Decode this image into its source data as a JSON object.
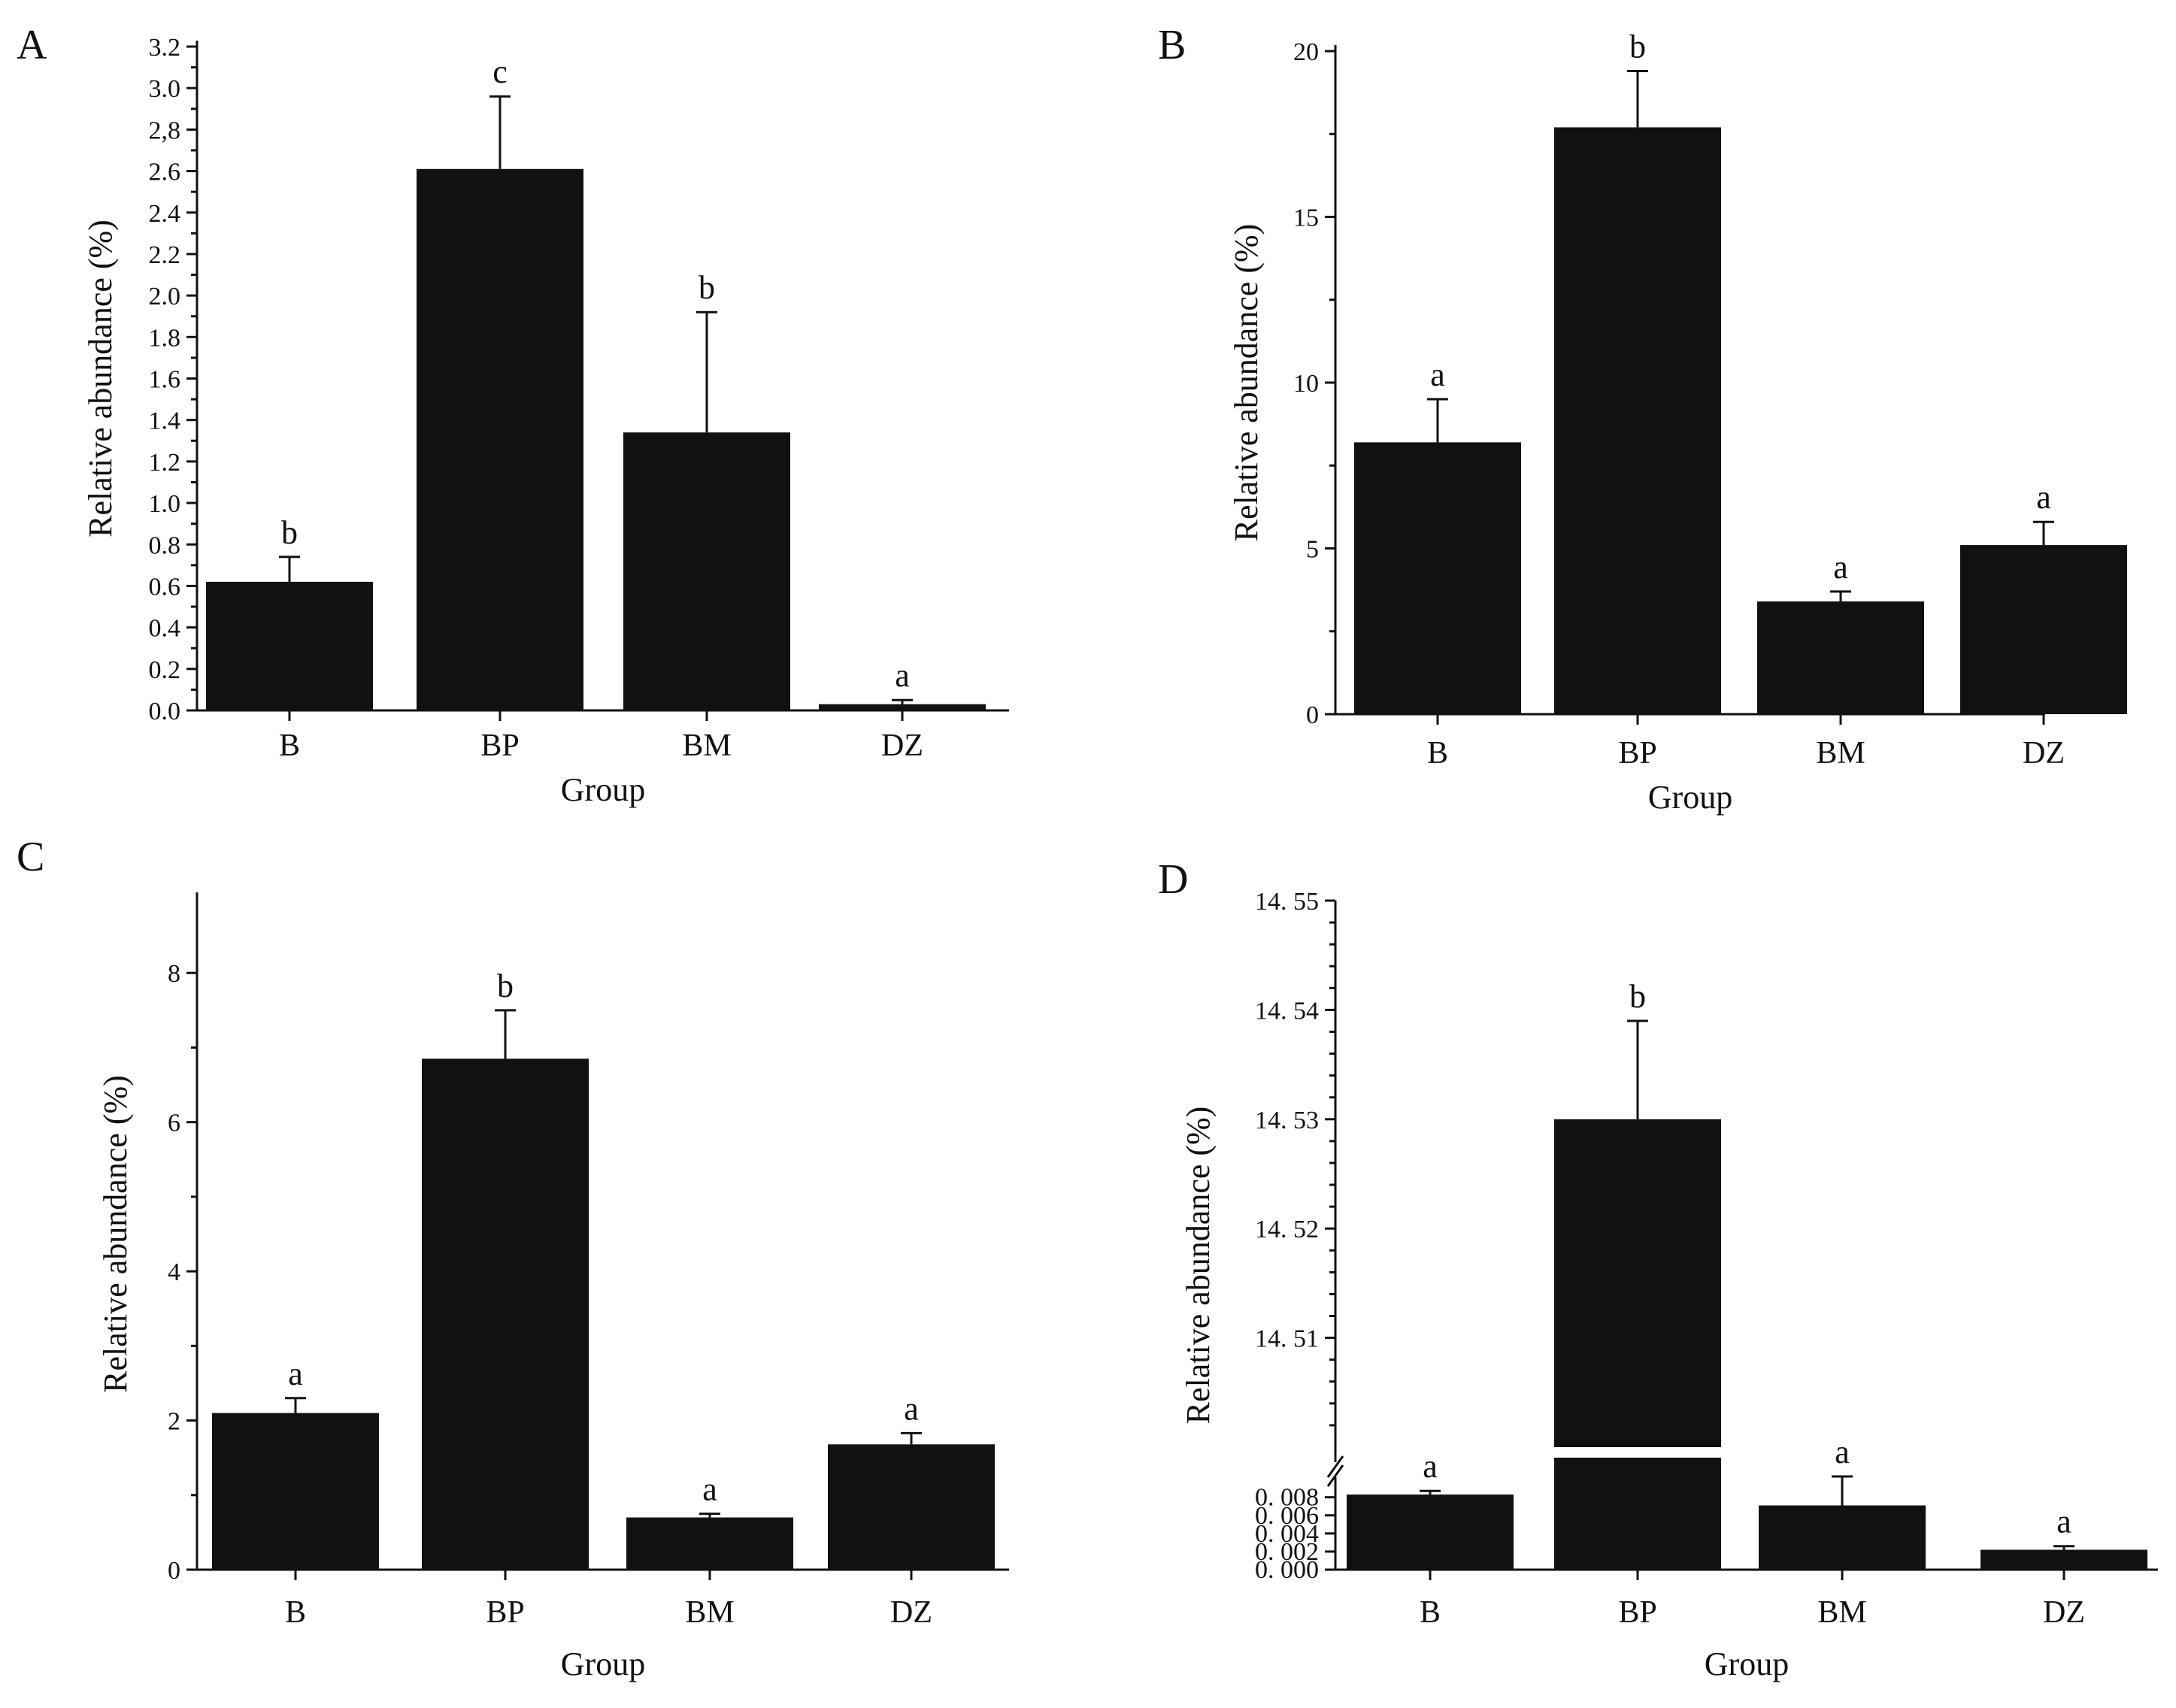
{
  "chart_data": [
    {
      "id": "A",
      "type": "bar",
      "panel_label": "A",
      "categories": [
        "B",
        "BP",
        "BM",
        "DZ"
      ],
      "values": [
        0.62,
        2.61,
        1.34,
        0.03
      ],
      "errors": [
        0.12,
        0.35,
        0.58,
        0.02
      ],
      "significance": [
        "b",
        "c",
        "b",
        "a"
      ],
      "xlabel": "Group",
      "ylabel": "Relative abundance (%)",
      "ylim": [
        0,
        3.2
      ],
      "yticks": [
        0,
        0.2,
        0.4,
        0.6,
        0.8,
        1.0,
        1.2,
        1.4,
        1.6,
        1.8,
        2.0,
        2.2,
        2.4,
        2.6,
        2.8,
        3.0,
        3.2
      ],
      "ytick_labels": [
        "0.0",
        "0.2",
        "0.4",
        "0.6",
        "0.8",
        "1.0",
        "1.2",
        "1.4",
        "1.6",
        "1.8",
        "2.0",
        "2.2",
        "2.4",
        "2.6",
        "2,8",
        "3.0",
        "3.2"
      ]
    },
    {
      "id": "B",
      "type": "bar",
      "panel_label": "B",
      "categories": [
        "B",
        "BP",
        "BM",
        "DZ"
      ],
      "values": [
        8.2,
        17.7,
        3.4,
        5.1
      ],
      "errors": [
        1.3,
        1.7,
        0.3,
        0.7
      ],
      "significance": [
        "a",
        "b",
        "a",
        "a"
      ],
      "xlabel": "Group",
      "ylabel": "Relative abundance (%)",
      "ylim": [
        0,
        20
      ],
      "yticks": [
        0,
        5,
        10,
        15,
        20
      ],
      "ytick_labels": [
        "0",
        "5",
        "10",
        "15",
        "20"
      ]
    },
    {
      "id": "C",
      "type": "bar",
      "panel_label": "C",
      "categories": [
        "B",
        "BP",
        "BM",
        "DZ"
      ],
      "values": [
        2.1,
        6.85,
        0.7,
        1.68
      ],
      "errors": [
        0.2,
        0.65,
        0.05,
        0.15
      ],
      "significance": [
        "a",
        "b",
        "a",
        "a"
      ],
      "xlabel": "Group",
      "ylabel": "Relative abundance (%)",
      "ylim": [
        0,
        9
      ],
      "yticks": [
        0,
        2,
        4,
        6,
        8
      ],
      "ytick_labels": [
        "0",
        "2",
        "4",
        "6",
        "8"
      ]
    },
    {
      "id": "D",
      "type": "bar",
      "panel_label": "D",
      "broken_axis": true,
      "categories": [
        "B",
        "BP",
        "BM",
        "DZ"
      ],
      "values": [
        0.0083,
        14.53,
        0.0071,
        0.0022
      ],
      "errors": [
        0.0004,
        0.009,
        0.0032,
        0.0004
      ],
      "significance": [
        "a",
        "b",
        "a",
        "a"
      ],
      "xlabel": "Group",
      "ylabel": "Relative abundance (%)",
      "lower_segment": {
        "ylim": [
          0,
          0.0098
        ],
        "yticks": [
          0,
          0.002,
          0.004,
          0.006,
          0.008
        ],
        "ytick_labels": [
          "0. 000",
          "0. 002",
          "0. 004",
          "0. 006",
          "0. 008"
        ]
      },
      "upper_segment": {
        "ylim": [
          14.5,
          14.55
        ],
        "yticks": [
          14.51,
          14.52,
          14.53,
          14.54,
          14.55
        ],
        "ytick_labels": [
          "14. 51",
          "14. 52",
          "14. 53",
          "14. 54",
          "14. 55"
        ]
      }
    }
  ]
}
